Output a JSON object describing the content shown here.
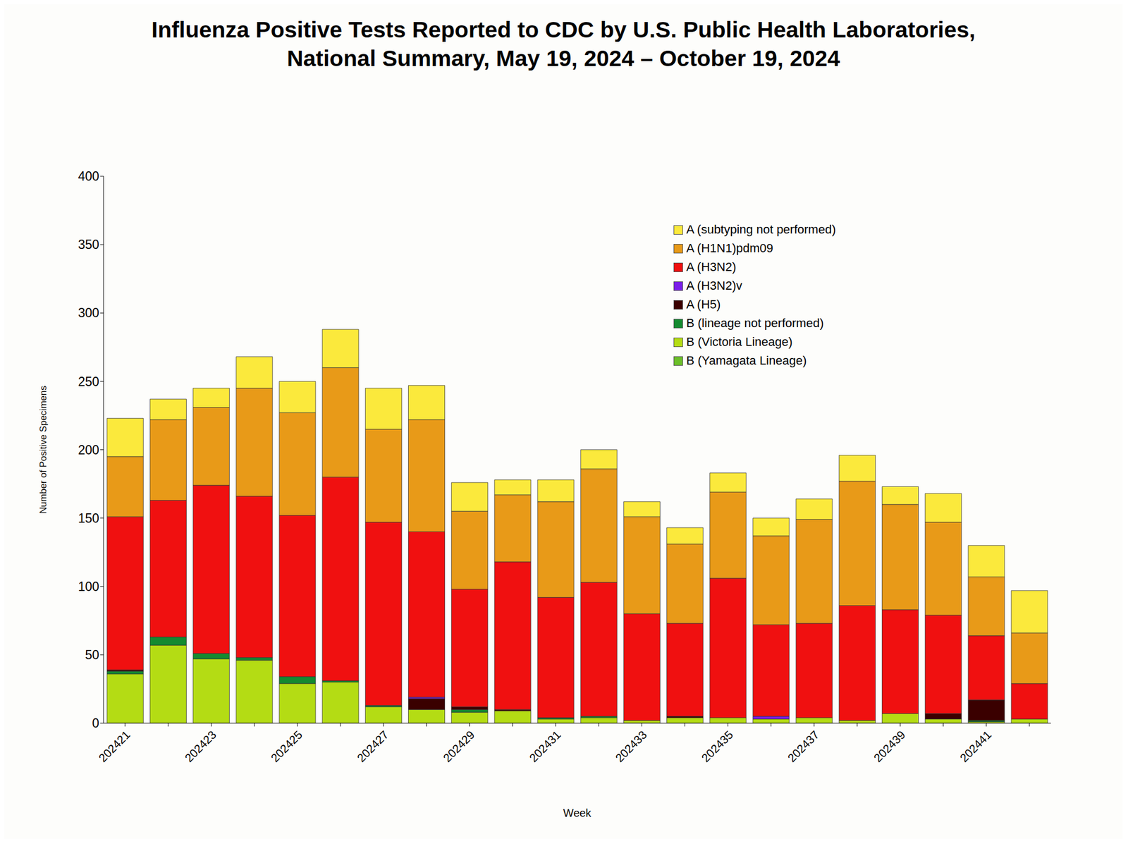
{
  "chart_data": {
    "type": "bar",
    "stacked": true,
    "title": "Influenza Positive Tests Reported to CDC by U.S. Public Health Laboratories,\nNational Summary, May 19, 2024 – October 19, 2024",
    "x_label": "Week",
    "y_label": "Number of Positive Specimens",
    "legend": "upper right",
    "ylim": [
      0,
      400
    ],
    "yticks": [
      0,
      50,
      100,
      150,
      200,
      250,
      300,
      350,
      400
    ],
    "categories": [
      "202421",
      null,
      "202423",
      null,
      "202425",
      null,
      "202427",
      null,
      "202429",
      null,
      "202431",
      null,
      "202433",
      null,
      "202435",
      null,
      "202437",
      null,
      "202439",
      null,
      "202441",
      null
    ],
    "series": [
      {
        "name": "A (subtyping not performed)",
        "color": "#fbe93c",
        "values": [
          28,
          15,
          14,
          23,
          23,
          28,
          30,
          25,
          21,
          11,
          16,
          14,
          11,
          12,
          14,
          13,
          15,
          19,
          13,
          21,
          23,
          31
        ]
      },
      {
        "name": "A (H1N1)pdm09",
        "color": "#e89a18",
        "values": [
          44,
          59,
          57,
          79,
          75,
          80,
          68,
          82,
          57,
          49,
          70,
          83,
          71,
          58,
          63,
          65,
          76,
          91,
          77,
          68,
          43,
          37
        ]
      },
      {
        "name": "A (H3N2)",
        "color": "#f01010",
        "values": [
          112,
          100,
          123,
          118,
          118,
          149,
          134,
          121,
          86,
          108,
          88,
          98,
          78,
          68,
          102,
          67,
          69,
          84,
          76,
          72,
          47,
          26
        ]
      },
      {
        "name": "A (H3N2)v",
        "color": "#7a1ee8",
        "values": [
          0,
          0,
          0,
          0,
          0,
          0,
          0,
          1,
          0,
          0,
          0,
          0,
          0,
          0,
          0,
          2,
          0,
          0,
          0,
          0,
          0,
          0
        ]
      },
      {
        "name": "A (H5)",
        "color": "#3a0000",
        "values": [
          1,
          0,
          0,
          0,
          0,
          0,
          0,
          8,
          2,
          1,
          0,
          0,
          0,
          1,
          0,
          0,
          0,
          0,
          0,
          4,
          15,
          0
        ]
      },
      {
        "name": "B (lineage not performed)",
        "color": "#148a30",
        "values": [
          2,
          6,
          4,
          2,
          5,
          1,
          1,
          0,
          2,
          0,
          1,
          1,
          0,
          0,
          0,
          0,
          0,
          0,
          0,
          0,
          1,
          0
        ]
      },
      {
        "name": "B (Victoria Lineage)",
        "color": "#b4dc14",
        "values": [
          36,
          57,
          47,
          46,
          29,
          30,
          12,
          10,
          8,
          9,
          3,
          4,
          2,
          4,
          4,
          3,
          4,
          2,
          7,
          3,
          1,
          3
        ]
      },
      {
        "name": "B (Yamagata Lineage)",
        "color": "#6cbf2a",
        "values": [
          0,
          0,
          0,
          0,
          0,
          0,
          0,
          0,
          0,
          0,
          0,
          0,
          0,
          0,
          0,
          0,
          0,
          0,
          0,
          0,
          0,
          0
        ]
      }
    ]
  }
}
